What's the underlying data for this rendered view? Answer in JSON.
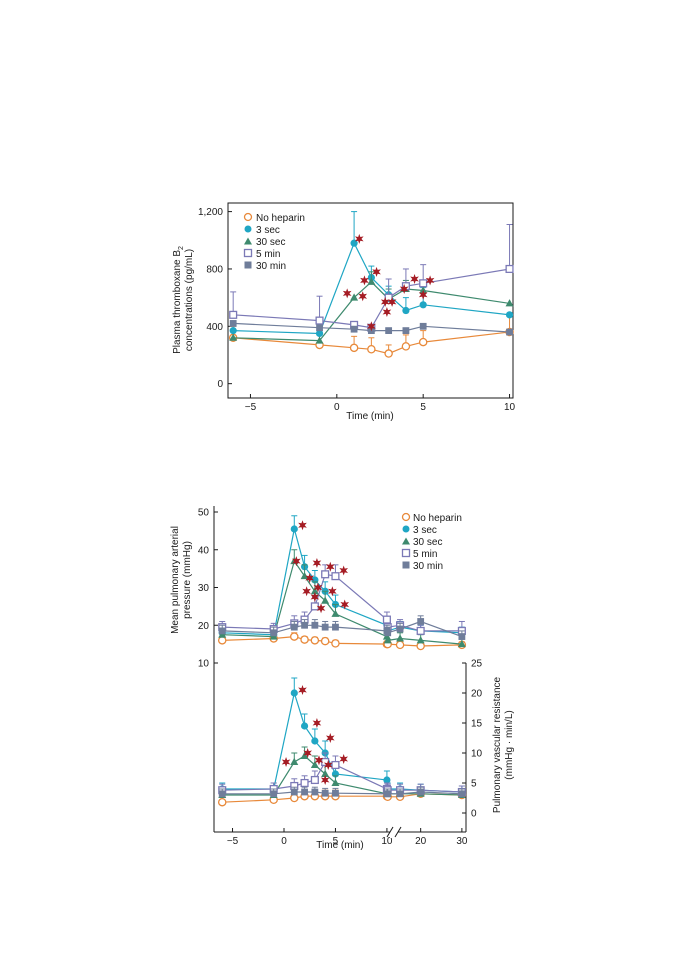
{
  "colors": {
    "No heparin": "#e8893a",
    "3 sec": "#1fa6c4",
    "30 sec": "#3e8a6e",
    "5 min": "#7b79b6",
    "30 min": "#6f7d9a",
    "star": "#a51c24",
    "axis": "#1a1a1a"
  },
  "legend": [
    "No heparin",
    "3 sec",
    "30 sec",
    "5 min",
    "30 min"
  ],
  "chart_data": [
    {
      "type": "line",
      "title": "",
      "xlabel": "Time (min)",
      "ylabel_line1": "Plasma thromboxane B",
      "ylabel_sub": "2",
      "ylabel_line2": "concentrations (pg/mL)",
      "xlim": [
        -6.3,
        10.2
      ],
      "ylim": [
        -100,
        1260
      ],
      "xticks": [
        -5,
        0,
        5,
        10
      ],
      "xtick_labels": [
        "−5",
        "0",
        "5",
        "10"
      ],
      "yticks": [
        0,
        400,
        800,
        1200
      ],
      "ytick_labels": [
        "0",
        "400",
        "800",
        "1,200"
      ],
      "legend_position": "top-left",
      "series": [
        {
          "name": "No heparin",
          "marker": "open-circle",
          "x": [
            -6,
            -1,
            1,
            2,
            3,
            4,
            5,
            10
          ],
          "y": [
            320,
            270,
            250,
            240,
            210,
            260,
            290,
            360
          ],
          "err": [
            80,
            80,
            80,
            80,
            60,
            80,
            80,
            130
          ]
        },
        {
          "name": "3 sec",
          "marker": "filled-circle",
          "x": [
            -6,
            -1,
            1,
            2,
            3,
            4,
            5,
            10
          ],
          "y": [
            370,
            350,
            980,
            740,
            620,
            510,
            550,
            480
          ],
          "err": [
            0,
            0,
            220,
            80,
            60,
            90,
            120,
            0
          ]
        },
        {
          "name": "30 sec",
          "marker": "filled-triangle",
          "x": [
            -6,
            -1,
            1,
            2,
            3,
            4,
            5,
            10
          ],
          "y": [
            320,
            300,
            600,
            710,
            590,
            660,
            650,
            560
          ],
          "err": [
            0,
            0,
            0,
            70,
            70,
            60,
            60,
            0
          ]
        },
        {
          "name": "5 min",
          "marker": "open-square",
          "x": [
            -6,
            -1,
            1,
            2,
            3,
            4,
            5,
            10
          ],
          "y": [
            480,
            440,
            410,
            390,
            600,
            680,
            700,
            800
          ],
          "err": [
            160,
            170,
            0,
            0,
            130,
            120,
            130,
            310
          ]
        },
        {
          "name": "30 min",
          "marker": "filled-square",
          "x": [
            -6,
            -1,
            1,
            2,
            3,
            4,
            5,
            10
          ],
          "y": [
            420,
            390,
            380,
            370,
            370,
            370,
            400,
            360
          ],
          "err": [
            0,
            0,
            0,
            0,
            0,
            0,
            0,
            0
          ]
        }
      ],
      "significance_stars": [
        {
          "x": 1.3,
          "y": 1010
        },
        {
          "x": 1.6,
          "y": 720
        },
        {
          "x": 2.3,
          "y": 780
        },
        {
          "x": 0.6,
          "y": 630
        },
        {
          "x": 1.5,
          "y": 610
        },
        {
          "x": 2.0,
          "y": 400
        },
        {
          "x": 2.8,
          "y": 570
        },
        {
          "x": 3.2,
          "y": 570
        },
        {
          "x": 2.9,
          "y": 500
        },
        {
          "x": 3.9,
          "y": 660
        },
        {
          "x": 4.5,
          "y": 730
        },
        {
          "x": 5.4,
          "y": 720
        },
        {
          "x": 5.0,
          "y": 620
        }
      ]
    },
    {
      "type": "line",
      "title": "",
      "xlabel": "Time (min)",
      "ylabel_line1": "Mean pulmonary arterial",
      "ylabel_line2": "pressure (mmHg)",
      "ylim": [
        13,
        52
      ],
      "yticks": [
        10,
        20,
        30,
        40,
        50
      ],
      "ytick_labels": [
        "10",
        "20",
        "30",
        "40",
        "50"
      ],
      "legend_position": "top-right",
      "series": [
        {
          "name": "No heparin",
          "marker": "open-circle",
          "x": [
            -6,
            -1,
            1,
            2,
            3,
            4,
            5,
            10,
            12,
            15,
            20,
            30
          ],
          "y": [
            16,
            16.5,
            17,
            16.2,
            16,
            15.8,
            15.2,
            15,
            15,
            14.8,
            14.5,
            14.8
          ],
          "err": [
            1,
            1,
            1,
            0.8,
            0.8,
            0.8,
            0.8,
            0.8,
            0.8,
            0.8,
            0.8,
            0.8
          ]
        },
        {
          "name": "3 sec",
          "marker": "filled-circle",
          "x": [
            -6,
            -1,
            1,
            2,
            3,
            4,
            5,
            10,
            12,
            15,
            20,
            30
          ],
          "y": [
            18,
            17.5,
            45.5,
            35.5,
            32,
            29,
            25.5,
            20,
            18.5,
            19.5,
            18.5,
            18
          ],
          "err": [
            1.5,
            1.5,
            3.5,
            3,
            2.5,
            2.5,
            2.5,
            2,
            1.5,
            1.5,
            1.5,
            1.5
          ]
        },
        {
          "name": "30 sec",
          "marker": "filled-triangle",
          "x": [
            -6,
            -1,
            1,
            2,
            3,
            4,
            5,
            10,
            12,
            15,
            20,
            30
          ],
          "y": [
            17.5,
            17,
            37,
            33,
            29,
            26.5,
            23,
            17,
            16,
            16.5,
            16,
            15
          ],
          "err": [
            1.5,
            1.5,
            3,
            3,
            2.5,
            2.5,
            2.5,
            2,
            1.5,
            1.5,
            1.5,
            1.5
          ]
        },
        {
          "name": "5 min",
          "marker": "open-square",
          "x": [
            -6,
            -1,
            1,
            2,
            3,
            4,
            5,
            10,
            12,
            15,
            20,
            30
          ],
          "y": [
            19.5,
            19,
            20.5,
            21.5,
            25,
            33.5,
            33,
            21.5,
            19.5,
            20,
            18.5,
            18.5
          ],
          "err": [
            1.5,
            1.5,
            2,
            2,
            2.5,
            2.5,
            3,
            2,
            1.5,
            1.5,
            1.5,
            2.5
          ]
        },
        {
          "name": "30 min",
          "marker": "filled-square",
          "x": [
            -6,
            -1,
            1,
            2,
            3,
            4,
            5,
            10,
            12,
            15,
            20,
            30
          ],
          "y": [
            18.5,
            18,
            19.5,
            20,
            20,
            19.5,
            19.5,
            18.5,
            18,
            19,
            21,
            17
          ],
          "err": [
            1.5,
            1.5,
            1.5,
            1.5,
            1.5,
            1.5,
            1.5,
            1.5,
            1.5,
            1.5,
            1.5,
            1.5
          ]
        }
      ],
      "significance_stars": [
        {
          "x": 1.8,
          "y": 46.5
        },
        {
          "x": 3.2,
          "y": 36.5
        },
        {
          "x": 4.5,
          "y": 35.5
        },
        {
          "x": 5.8,
          "y": 34.5
        },
        {
          "x": 1.2,
          "y": 37
        },
        {
          "x": 2.5,
          "y": 32.5
        },
        {
          "x": 3.3,
          "y": 30
        },
        {
          "x": 4.7,
          "y": 29
        },
        {
          "x": 5.9,
          "y": 25.5
        },
        {
          "x": 2.2,
          "y": 29
        },
        {
          "x": 3.0,
          "y": 27.5
        },
        {
          "x": 3.6,
          "y": 24.5
        }
      ]
    },
    {
      "type": "line",
      "title": "",
      "xlabel": "Time (min)",
      "ylabel_line1": "Pulmonary vascular resistance",
      "ylabel_line2": "(mmHg · min/L)",
      "ylim": [
        -1,
        26
      ],
      "yticks": [
        0,
        5,
        10,
        15,
        20,
        25
      ],
      "ytick_labels": [
        "0",
        "5",
        "10",
        "15",
        "20",
        "25"
      ],
      "x_axis_break": "between 10 and 15",
      "xtick_labels": [
        "−5",
        "0",
        "5",
        "10",
        "20",
        "30"
      ],
      "series": [
        {
          "name": "No heparin",
          "marker": "open-circle",
          "x": [
            -6,
            -1,
            1,
            2,
            3,
            4,
            5,
            10,
            12,
            15,
            20,
            30
          ],
          "y": [
            1.8,
            2.2,
            2.5,
            2.8,
            2.8,
            2.8,
            2.8,
            2.8,
            2.7,
            2.7,
            3.2,
            3.0
          ],
          "err": [
            1,
            1,
            1,
            1,
            1,
            1,
            1,
            1,
            1,
            1,
            1,
            1
          ]
        },
        {
          "name": "3 sec",
          "marker": "filled-circle",
          "x": [
            -6,
            -1,
            1,
            2,
            3,
            4,
            5,
            10,
            12,
            15,
            20,
            30
          ],
          "y": [
            4,
            4,
            20,
            14.5,
            12,
            10,
            6.5,
            5.5,
            4,
            4,
            3.8,
            3.5
          ],
          "err": [
            1,
            1,
            2.5,
            2,
            2,
            2,
            1.5,
            1.5,
            1,
            1,
            1,
            1
          ]
        },
        {
          "name": "30 sec",
          "marker": "filled-triangle",
          "x": [
            -6,
            -1,
            1,
            2,
            3,
            4,
            5,
            10,
            12,
            15,
            20,
            30
          ],
          "y": [
            3,
            3,
            8.5,
            9.5,
            8,
            6.5,
            5,
            3.2,
            3.2,
            3.2,
            3.2,
            3
          ],
          "err": [
            1,
            1,
            1.5,
            1.5,
            1.5,
            1.5,
            1.2,
            1,
            1,
            1,
            1,
            1
          ]
        },
        {
          "name": "5 min",
          "marker": "open-square",
          "x": [
            -6,
            -1,
            1,
            2,
            3,
            4,
            5,
            10,
            12,
            15,
            20,
            30
          ],
          "y": [
            3.8,
            4,
            4.5,
            5,
            5.5,
            8.5,
            8,
            4,
            3.8,
            3.8,
            3.8,
            3.5
          ],
          "err": [
            1,
            1,
            1.2,
            1.2,
            1.5,
            1.5,
            1.5,
            1,
            1,
            1,
            1,
            1
          ]
        },
        {
          "name": "30 min",
          "marker": "filled-square",
          "x": [
            -6,
            -1,
            1,
            2,
            3,
            4,
            5,
            10,
            12,
            15,
            20,
            30
          ],
          "y": [
            3.2,
            3.2,
            3.5,
            3.5,
            3.5,
            3.3,
            3.3,
            3.2,
            3.2,
            3.2,
            3.5,
            3.2
          ],
          "err": [
            0.8,
            0.8,
            0.8,
            0.8,
            0.8,
            0.8,
            0.8,
            0.8,
            0.8,
            0.8,
            0.8,
            0.8
          ]
        }
      ],
      "significance_stars": [
        {
          "x": 1.8,
          "y": 20.5
        },
        {
          "x": 3.2,
          "y": 15
        },
        {
          "x": 4.5,
          "y": 12.5
        },
        {
          "x": 5.8,
          "y": 9
        },
        {
          "x": 0.2,
          "y": 8.5
        },
        {
          "x": 2.3,
          "y": 10
        },
        {
          "x": 3.4,
          "y": 8.8
        },
        {
          "x": 4.3,
          "y": 8
        },
        {
          "x": 4.0,
          "y": 5.5
        }
      ]
    }
  ]
}
